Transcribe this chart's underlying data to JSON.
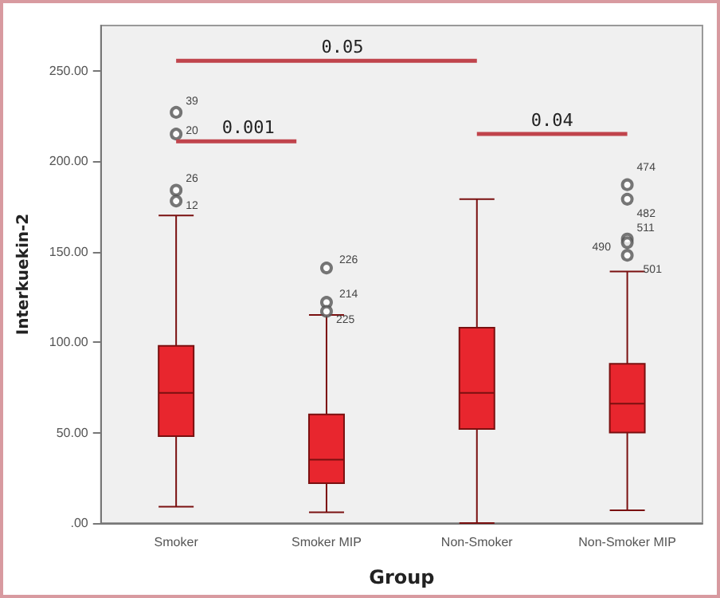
{
  "chart_data": {
    "type": "box",
    "xlabel": "Group",
    "ylabel": "Interkuekin-2",
    "categories": [
      "Smoker",
      "Smoker MIP",
      "Non-Smoker",
      "Non-Smoker MIP"
    ],
    "color": "#e8262e",
    "boxes": [
      {
        "low": 9,
        "q1": 48,
        "median": 72,
        "q3": 98,
        "high": 170,
        "outliers": [
          227,
          215,
          184,
          178
        ]
      },
      {
        "low": 6,
        "q1": 22,
        "median": 35,
        "q3": 60,
        "high": 115,
        "outliers": [
          141,
          122,
          117
        ]
      },
      {
        "low": 0,
        "q1": 52,
        "median": 72,
        "q3": 108,
        "high": 179
      },
      {
        "low": 7,
        "q1": 50,
        "median": 66,
        "q3": 88,
        "high": 139,
        "outliers": [
          187,
          179,
          157,
          155,
          148
        ]
      }
    ],
    "ylim": [
      0,
      275
    ],
    "yticks": [
      {
        "value": 0,
        "label": ".00"
      },
      {
        "value": 50,
        "label": "50.00"
      },
      {
        "value": 100,
        "label": "100.00"
      },
      {
        "value": 150,
        "label": "150.00"
      },
      {
        "value": 200,
        "label": "200.00"
      },
      {
        "value": 250,
        "label": "250.00"
      }
    ],
    "grid": false,
    "annotations": [
      "0.05",
      "0.001",
      "0.04",
      "39",
      "20",
      "26",
      "12",
      "226",
      "214",
      "225",
      "474",
      "482",
      "511",
      "490",
      "501"
    ]
  }
}
